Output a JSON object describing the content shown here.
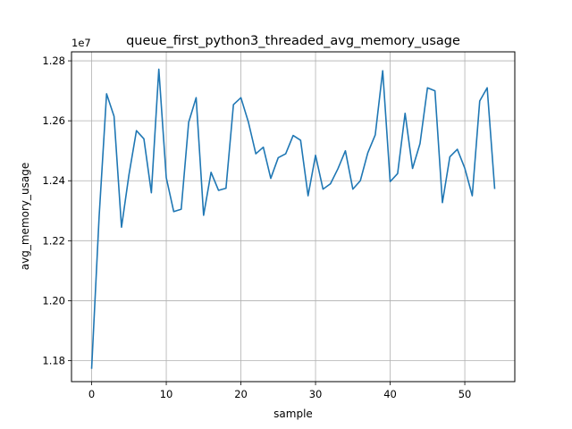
{
  "chart_data": {
    "type": "line",
    "title": "queue_first_python3_threaded_avg_memory_usage",
    "xlabel": "sample",
    "ylabel": "avg_memory_usage",
    "y_offset_label": "1e7",
    "xlim": [
      -2.7,
      56.7
    ],
    "ylim": [
      11730000,
      12830000
    ],
    "x_ticks": [
      0,
      10,
      20,
      30,
      40,
      50
    ],
    "y_ticks": [
      11800000,
      12000000,
      12200000,
      12400000,
      12600000,
      12800000
    ],
    "x_tick_labels": [
      "0",
      "10",
      "20",
      "30",
      "40",
      "50"
    ],
    "y_tick_labels": [
      "1.18",
      "1.20",
      "1.22",
      "1.24",
      "1.26",
      "1.28"
    ],
    "grid": true,
    "series": [
      {
        "color": "#1f77b4",
        "x": [
          0,
          1,
          2,
          3,
          4,
          5,
          6,
          7,
          8,
          9,
          10,
          11,
          12,
          13,
          14,
          15,
          16,
          17,
          18,
          19,
          20,
          21,
          22,
          23,
          24,
          25,
          26,
          27,
          28,
          29,
          30,
          31,
          32,
          33,
          34,
          35,
          36,
          37,
          38,
          39,
          40,
          41,
          42,
          43,
          44,
          45,
          46,
          47,
          48,
          49,
          50,
          51,
          52,
          53,
          54
        ],
        "values": [
          11775000,
          12280000,
          12690000,
          12615000,
          12245000,
          12420000,
          12567000,
          12540000,
          12360000,
          12772000,
          12410000,
          12297000,
          12305000,
          12595000,
          12677000,
          12285000,
          12428000,
          12368000,
          12375000,
          12654000,
          12677000,
          12596000,
          12490000,
          12512000,
          12408000,
          12477000,
          12490000,
          12551000,
          12535000,
          12350000,
          12485000,
          12372000,
          12390000,
          12440000,
          12500000,
          12372000,
          12400000,
          12493000,
          12553000,
          12767000,
          12397000,
          12424000,
          12625000,
          12441000,
          12524000,
          12710000,
          12700000,
          12327000,
          12480000,
          12505000,
          12442000,
          12350000,
          12666000,
          12710000,
          12375000
        ]
      }
    ]
  }
}
